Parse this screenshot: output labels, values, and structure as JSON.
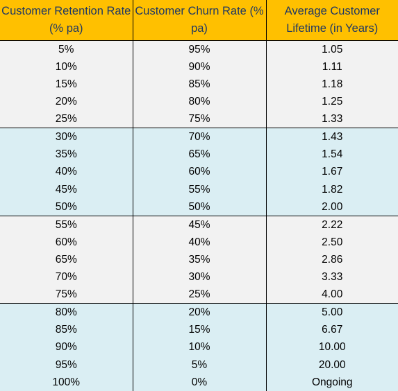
{
  "table": {
    "headers": [
      "Customer Retention Rate (% pa)",
      "Customer Churn Rate (% pa)",
      "Average Customer Lifetime (in Years)"
    ],
    "groups": [
      {
        "band": "grey",
        "rows": [
          [
            "5%",
            "95%",
            "1.05"
          ],
          [
            "10%",
            "90%",
            "1.11"
          ],
          [
            "15%",
            "85%",
            "1.18"
          ],
          [
            "20%",
            "80%",
            "1.25"
          ],
          [
            "25%",
            "75%",
            "1.33"
          ]
        ]
      },
      {
        "band": "blue",
        "rows": [
          [
            "30%",
            "70%",
            "1.43"
          ],
          [
            "35%",
            "65%",
            "1.54"
          ],
          [
            "40%",
            "60%",
            "1.67"
          ],
          [
            "45%",
            "55%",
            "1.82"
          ],
          [
            "50%",
            "50%",
            "2.00"
          ]
        ]
      },
      {
        "band": "grey",
        "rows": [
          [
            "55%",
            "45%",
            "2.22"
          ],
          [
            "60%",
            "40%",
            "2.50"
          ],
          [
            "65%",
            "35%",
            "2.86"
          ],
          [
            "70%",
            "30%",
            "3.33"
          ],
          [
            "75%",
            "25%",
            "4.00"
          ]
        ]
      },
      {
        "band": "blue",
        "rows": [
          [
            "80%",
            "20%",
            "5.00"
          ],
          [
            "85%",
            "15%",
            "6.67"
          ],
          [
            "90%",
            "10%",
            "10.00"
          ],
          [
            "95%",
            "5%",
            "20.00"
          ],
          [
            "100%",
            "0%",
            "Ongoing"
          ]
        ]
      }
    ]
  },
  "colors": {
    "header_bg": "#ffc000",
    "header_text": "#1f3864",
    "band_grey": "#f2f2f2",
    "band_blue": "#daeef3",
    "rule": "#000000"
  }
}
